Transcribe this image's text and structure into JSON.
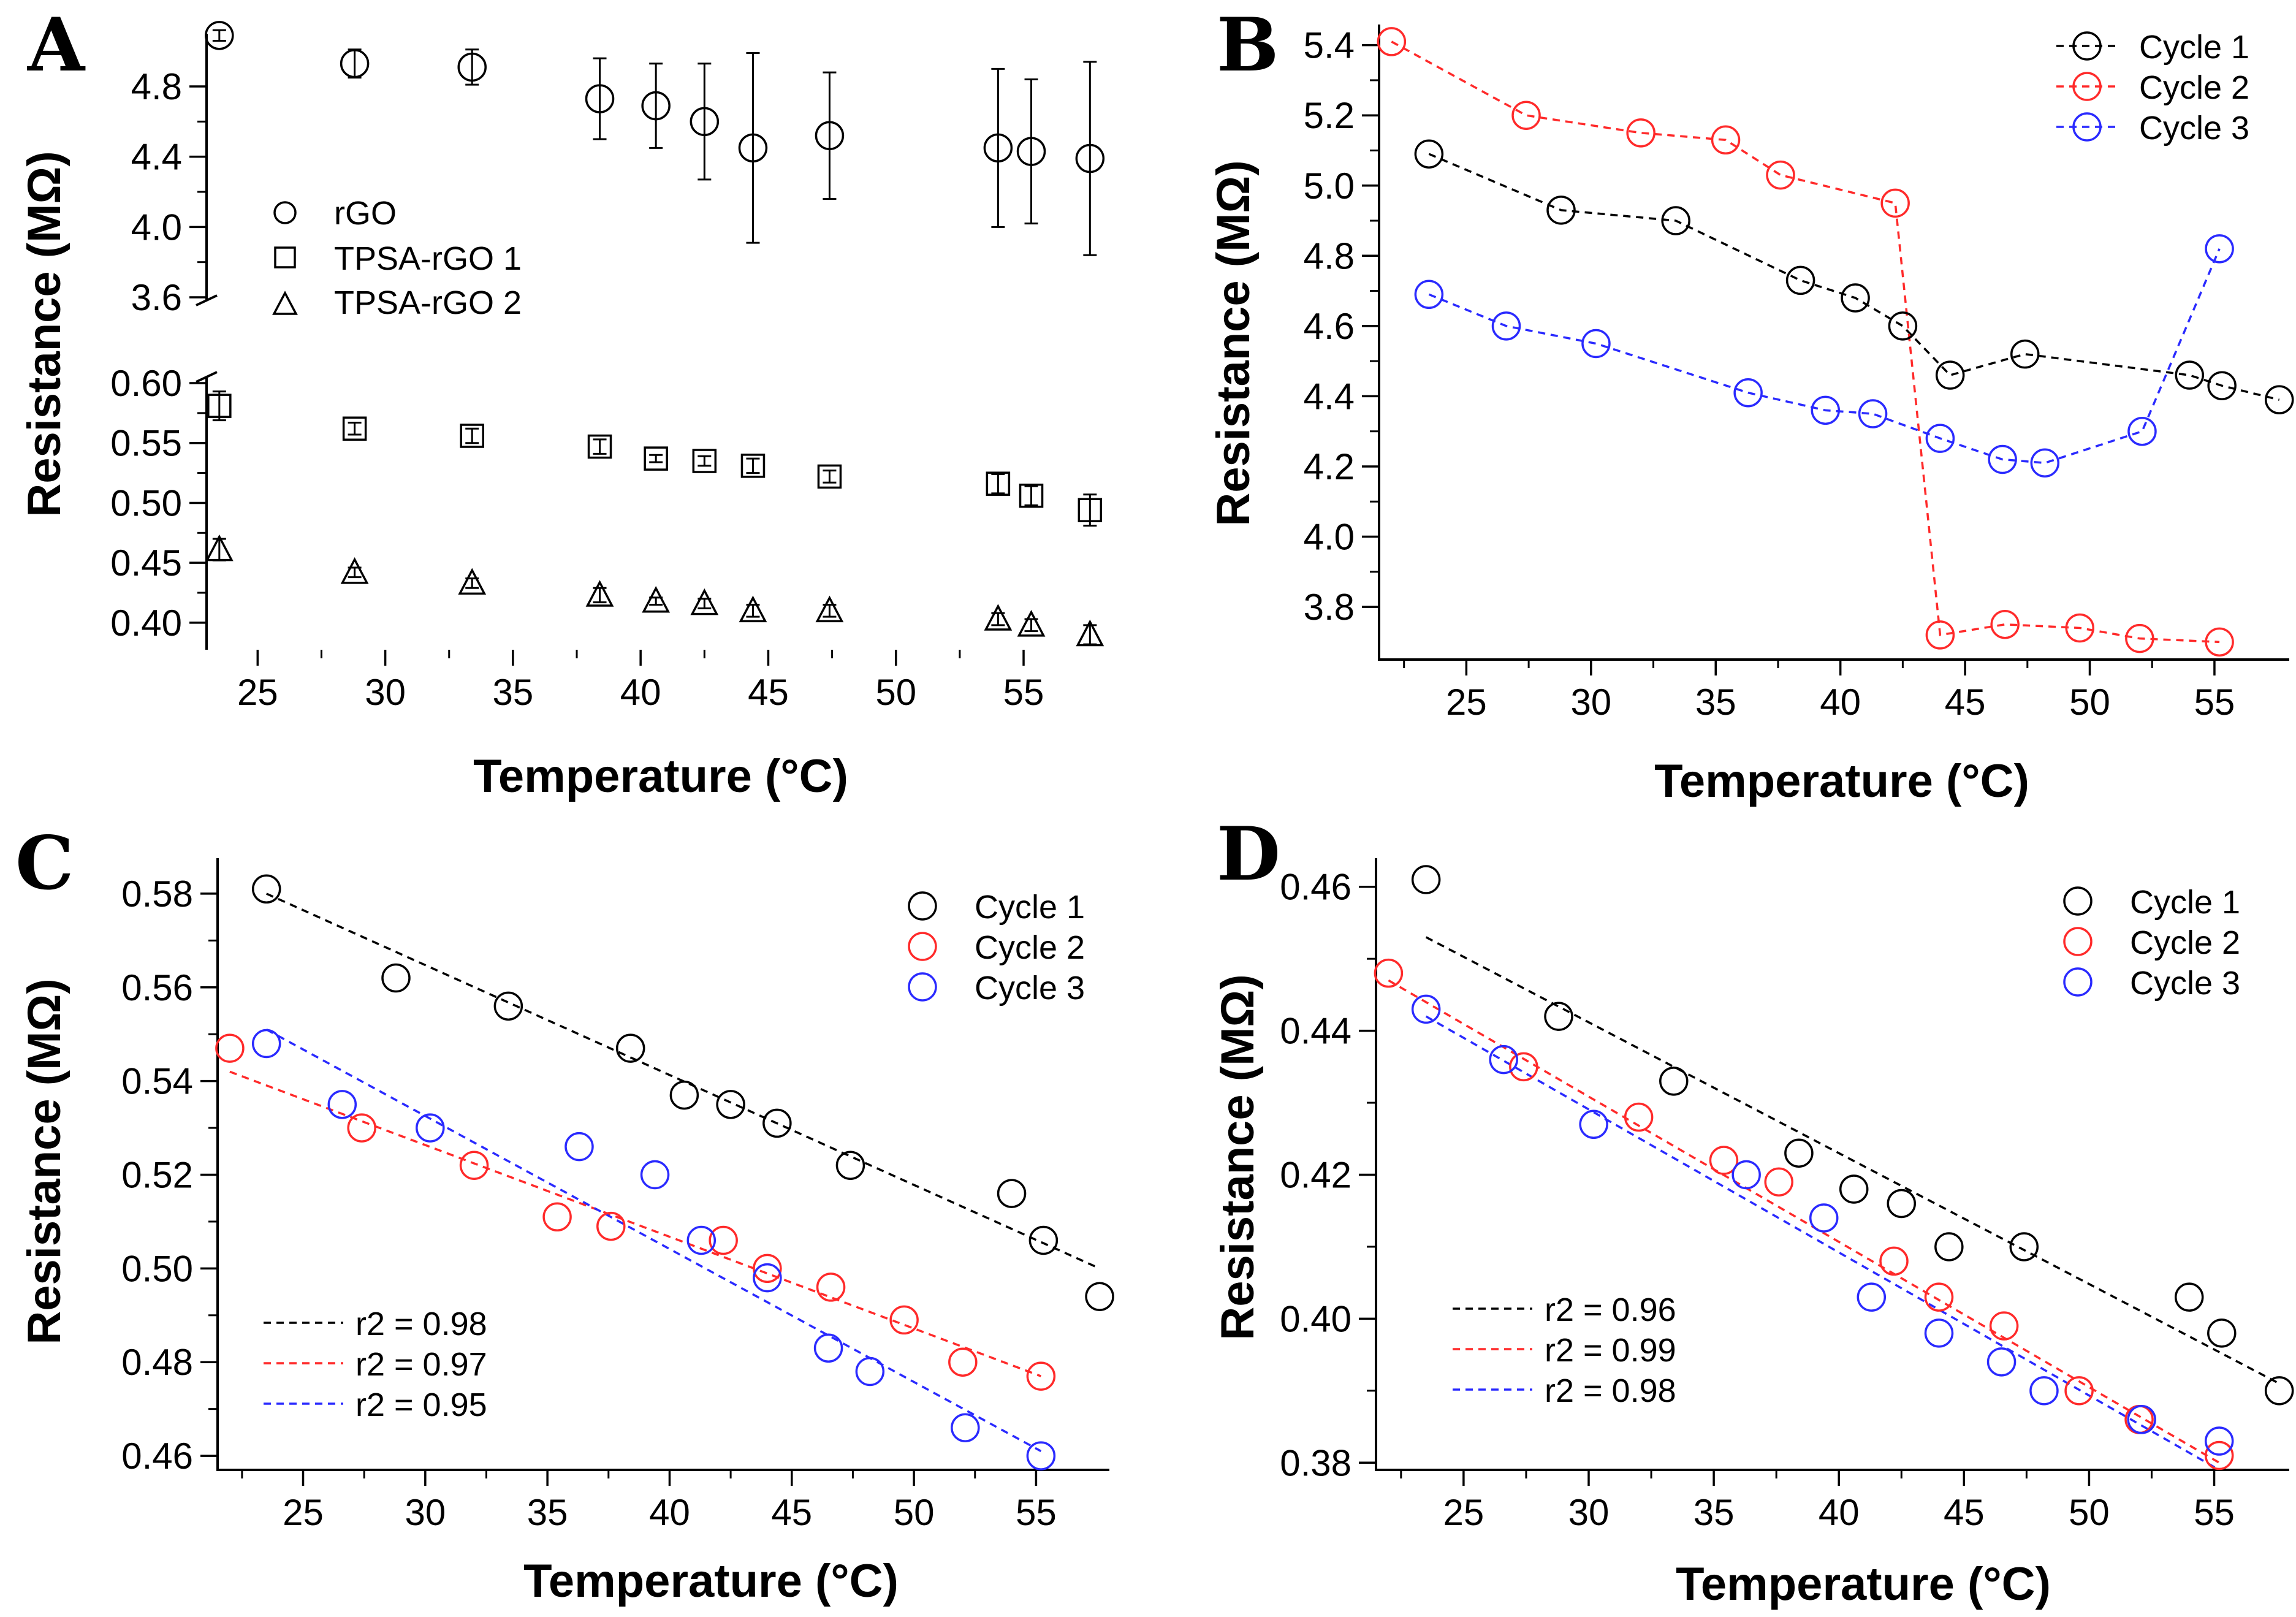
{
  "chart_data": [
    {
      "panel": "A",
      "type": "scatter",
      "xlabel": "Temperature (°C)",
      "ylabel": "Resistance (MΩ)",
      "xlim": [
        23,
        58
      ],
      "xticks": [
        25,
        30,
        35,
        40,
        45,
        50,
        55
      ],
      "ylim_upper": [
        3.6,
        5.1
      ],
      "yticks_upper": [
        3.6,
        4.0,
        4.4,
        4.8
      ],
      "ytick_labels_upper": [
        "3.6",
        "4.0",
        "4.4",
        "4.8"
      ],
      "ylim_lower": [
        0.38,
        0.6
      ],
      "yticks_lower": [
        0.4,
        0.45,
        0.5,
        0.55,
        0.6
      ],
      "ytick_labels_lower": [
        "0.40",
        "0.45",
        "0.50",
        "0.55",
        "0.60"
      ],
      "legend": [
        "rGO",
        "TPSA-rGO 1",
        "TPSA-rGO 2"
      ],
      "series": [
        {
          "name": "rGO",
          "marker": "circle",
          "x": [
            23.5,
            28.8,
            33.4,
            38.4,
            40.6,
            42.5,
            44.4,
            47.4,
            54.0,
            55.3,
            57.6
          ],
          "values": [
            5.09,
            4.93,
            4.91,
            4.73,
            4.69,
            4.6,
            4.45,
            4.52,
            4.45,
            4.43,
            4.39
          ],
          "err": [
            0.03,
            0.08,
            0.1,
            0.23,
            0.24,
            0.33,
            0.54,
            0.36,
            0.45,
            0.41,
            0.55
          ]
        },
        {
          "name": "TPSA-rGO 1",
          "marker": "square",
          "x": [
            23.5,
            28.8,
            33.4,
            38.4,
            40.6,
            42.5,
            44.4,
            47.4,
            54.0,
            55.3,
            57.6
          ],
          "values": [
            0.581,
            0.562,
            0.556,
            0.547,
            0.537,
            0.535,
            0.531,
            0.522,
            0.516,
            0.506,
            0.494
          ],
          "err": [
            0.012,
            0.005,
            0.006,
            0.006,
            0.003,
            0.004,
            0.006,
            0.005,
            0.008,
            0.008,
            0.013
          ]
        },
        {
          "name": "TPSA-rGO 2",
          "marker": "triangle",
          "x": [
            23.5,
            28.8,
            33.4,
            38.4,
            40.6,
            42.5,
            44.4,
            47.4,
            54.0,
            55.3,
            57.6
          ],
          "values": [
            0.461,
            0.442,
            0.433,
            0.423,
            0.418,
            0.416,
            0.41,
            0.41,
            0.403,
            0.398,
            0.39
          ],
          "err": [
            0.009,
            0.004,
            0.004,
            0.006,
            0.003,
            0.004,
            0.005,
            0.005,
            0.005,
            0.005,
            0.008
          ]
        }
      ]
    },
    {
      "panel": "B",
      "type": "line",
      "xlabel": "Temperature (°C)",
      "ylabel": "Resistance (MΩ)",
      "xlim": [
        21.5,
        58
      ],
      "xticks": [
        25,
        30,
        35,
        40,
        45,
        50,
        55
      ],
      "ylim": [
        3.65,
        5.45
      ],
      "yticks": [
        3.8,
        4.0,
        4.2,
        4.4,
        4.6,
        4.8,
        5.0,
        5.2,
        5.4
      ],
      "ytick_labels": [
        "3.8",
        "4.0",
        "4.2",
        "4.4",
        "4.6",
        "4.8",
        "5.0",
        "5.2",
        "5.4"
      ],
      "legend": [
        "Cycle 1",
        "Cycle 2",
        "Cycle 3"
      ],
      "series": [
        {
          "name": "Cycle 1",
          "color": "#000000",
          "x": [
            23.5,
            28.8,
            33.4,
            38.4,
            40.6,
            42.5,
            44.4,
            47.4,
            54.0,
            55.3,
            57.6
          ],
          "values": [
            5.09,
            4.93,
            4.9,
            4.73,
            4.68,
            4.6,
            4.46,
            4.52,
            4.46,
            4.43,
            4.39
          ]
        },
        {
          "name": "Cycle 2",
          "color": "#ff2a2a",
          "x": [
            22.0,
            27.4,
            32.0,
            35.4,
            37.6,
            42.2,
            44.0,
            46.6,
            49.6,
            52.0,
            55.2
          ],
          "values": [
            5.41,
            5.2,
            5.15,
            5.13,
            5.03,
            4.95,
            3.72,
            3.75,
            3.74,
            3.71,
            3.7
          ]
        },
        {
          "name": "Cycle 3",
          "color": "#2a2aff",
          "x": [
            23.5,
            26.6,
            30.2,
            36.3,
            39.4,
            41.3,
            44.0,
            46.5,
            48.2,
            52.1,
            55.2
          ],
          "values": [
            4.69,
            4.6,
            4.55,
            4.41,
            4.36,
            4.35,
            4.28,
            4.22,
            4.21,
            4.3,
            4.82
          ]
        }
      ]
    },
    {
      "panel": "C",
      "type": "scatter",
      "xlabel": "Temperature (°C)",
      "ylabel": "Resistance (MΩ)",
      "xlim": [
        21.5,
        58
      ],
      "xticks": [
        25,
        30,
        35,
        40,
        45,
        50,
        55
      ],
      "ylim": [
        0.457,
        0.583
      ],
      "yticks": [
        0.46,
        0.48,
        0.5,
        0.52,
        0.54,
        0.56,
        0.58
      ],
      "ytick_labels": [
        "0.46",
        "0.48",
        "0.50",
        "0.52",
        "0.54",
        "0.56",
        "0.58"
      ],
      "legend": [
        "Cycle 1",
        "Cycle 2",
        "Cycle 3"
      ],
      "fit_legend": [
        "r2 = 0.98",
        "r2 = 0.97",
        "r2 = 0.95"
      ],
      "series": [
        {
          "name": "Cycle 1",
          "color": "#000000",
          "x": [
            23.5,
            28.8,
            33.4,
            38.4,
            40.6,
            42.5,
            44.4,
            47.4,
            54.0,
            55.3,
            57.6
          ],
          "values": [
            0.581,
            0.562,
            0.556,
            0.547,
            0.537,
            0.535,
            0.531,
            0.522,
            0.516,
            0.506,
            0.494
          ],
          "fit": {
            "x": [
              23.5,
              57.6
            ],
            "y": [
              0.58,
              0.5
            ]
          }
        },
        {
          "name": "Cycle 2",
          "color": "#ff2a2a",
          "x": [
            22.0,
            27.4,
            32.0,
            35.4,
            37.6,
            42.2,
            44.0,
            46.6,
            49.6,
            52.0,
            55.2
          ],
          "values": [
            0.547,
            0.53,
            0.522,
            0.511,
            0.509,
            0.506,
            0.5,
            0.496,
            0.489,
            0.48,
            0.477
          ],
          "fit": {
            "x": [
              22.0,
              55.2
            ],
            "y": [
              0.542,
              0.477
            ]
          }
        },
        {
          "name": "Cycle 3",
          "color": "#2a2aff",
          "x": [
            23.5,
            26.6,
            30.2,
            36.3,
            39.4,
            41.3,
            44.0,
            46.5,
            48.2,
            52.1,
            55.2
          ],
          "values": [
            0.548,
            0.535,
            0.53,
            0.526,
            0.52,
            0.506,
            0.498,
            0.483,
            0.478,
            0.466,
            0.46
          ],
          "fit": {
            "x": [
              23.5,
              55.2
            ],
            "y": [
              0.551,
              0.461
            ]
          }
        }
      ]
    },
    {
      "panel": "D",
      "type": "scatter",
      "xlabel": "Temperature (°C)",
      "ylabel": "Resistance (MΩ)",
      "xlim": [
        21.5,
        58
      ],
      "xticks": [
        25,
        30,
        35,
        40,
        45,
        50,
        55
      ],
      "ylim": [
        0.379,
        0.461
      ],
      "yticks": [
        0.38,
        0.4,
        0.42,
        0.44,
        0.46
      ],
      "ytick_labels": [
        "0.38",
        "0.40",
        "0.42",
        "0.44",
        "0.46"
      ],
      "legend": [
        "Cycle 1",
        "Cycle 2",
        "Cycle 3"
      ],
      "fit_legend": [
        "r2 = 0.96",
        "r2 = 0.99",
        "r2 = 0.98"
      ],
      "series": [
        {
          "name": "Cycle 1",
          "color": "#000000",
          "x": [
            23.5,
            28.8,
            33.4,
            38.4,
            40.6,
            42.5,
            44.4,
            47.4,
            54.0,
            55.3,
            57.6
          ],
          "values": [
            0.461,
            0.442,
            0.433,
            0.423,
            0.418,
            0.416,
            0.41,
            0.41,
            0.403,
            0.398,
            0.39
          ],
          "fit": {
            "x": [
              23.5,
              57.6
            ],
            "y": [
              0.453,
              0.391
            ]
          }
        },
        {
          "name": "Cycle 2",
          "color": "#ff2a2a",
          "x": [
            22.0,
            27.4,
            32.0,
            35.4,
            37.6,
            42.2,
            44.0,
            46.6,
            49.6,
            52.0,
            55.2
          ],
          "values": [
            0.448,
            0.435,
            0.428,
            0.422,
            0.419,
            0.408,
            0.403,
            0.399,
            0.39,
            0.386,
            0.381
          ],
          "fit": {
            "x": [
              22.0,
              55.2
            ],
            "y": [
              0.447,
              0.38
            ]
          }
        },
        {
          "name": "Cycle 3",
          "color": "#2a2aff",
          "x": [
            23.5,
            26.6,
            30.2,
            36.3,
            39.4,
            41.3,
            44.0,
            46.5,
            48.2,
            52.1,
            55.2
          ],
          "values": [
            0.443,
            0.436,
            0.427,
            0.42,
            0.414,
            0.403,
            0.398,
            0.394,
            0.39,
            0.386,
            0.383
          ],
          "fit": {
            "x": [
              23.5,
              55.2
            ],
            "y": [
              0.442,
              0.379
            ]
          }
        }
      ]
    }
  ]
}
